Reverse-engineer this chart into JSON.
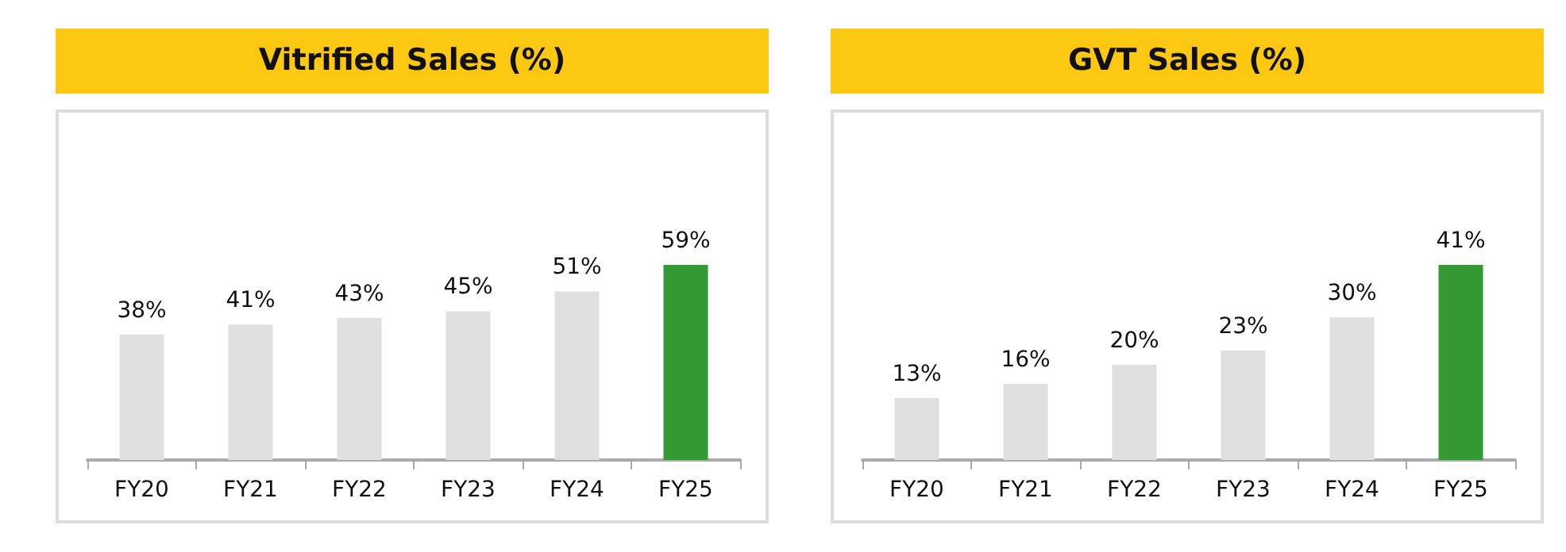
{
  "chart_data": [
    {
      "type": "bar",
      "title": "Vitrified Sales (%)",
      "categories": [
        "FY20",
        "FY21",
        "FY22",
        "FY23",
        "FY24",
        "FY25"
      ],
      "values": [
        38,
        41,
        43,
        45,
        51,
        59
      ],
      "value_labels": [
        "38%",
        "41%",
        "43%",
        "45%",
        "51%",
        "59%"
      ],
      "colors": [
        "#e0e0e0",
        "#e0e0e0",
        "#e0e0e0",
        "#e0e0e0",
        "#e0e0e0",
        "#339933"
      ],
      "grid": false
    },
    {
      "type": "bar",
      "title": "GVT Sales (%)",
      "categories": [
        "FY20",
        "FY21",
        "FY22",
        "FY23",
        "FY24",
        "FY25"
      ],
      "values": [
        13,
        16,
        20,
        23,
        30,
        41
      ],
      "value_labels": [
        "13%",
        "16%",
        "20%",
        "23%",
        "30%",
        "41%"
      ],
      "colors": [
        "#e0e0e0",
        "#e0e0e0",
        "#e0e0e0",
        "#e0e0e0",
        "#e0e0e0",
        "#339933"
      ],
      "grid": false
    }
  ]
}
